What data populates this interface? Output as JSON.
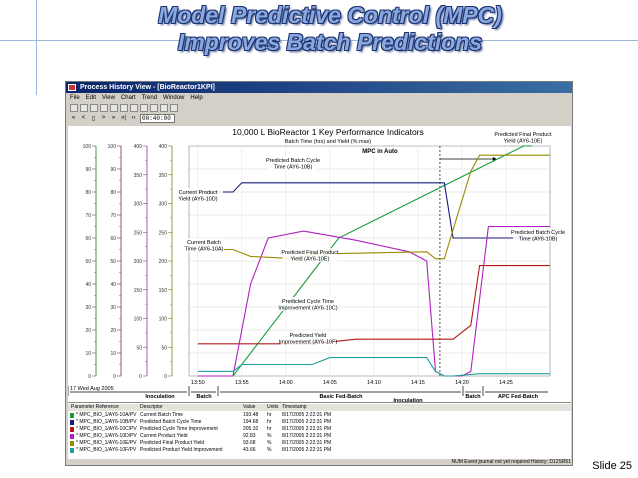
{
  "slide": {
    "title_line1": "Model Predictive Control (MPC)",
    "title_line2": "Improves Batch Predictions",
    "slide_number": "Slide 25"
  },
  "window": {
    "title": "Process History View - [BioReactor1KPI]",
    "menu": [
      "File",
      "Edit",
      "View",
      "Chart",
      "Trend",
      "Window",
      "Help"
    ],
    "nav_glyphs": [
      "«",
      "<",
      "▯",
      ">",
      "»",
      "»|",
      "‹›"
    ],
    "time_span": "00:40:00",
    "status": "NUM  Event journal not yet required  History: D12SR51"
  },
  "chart_data": {
    "type": "line",
    "title": "10,000 L BioReactor 1 Key Performance Indicators",
    "subtitle": "Batch Time (hrs) and Yield (% max)",
    "x_tick_labels": [
      "13:50",
      "13:55",
      "14:00",
      "14:05",
      "14:10",
      "14:15",
      "14:20",
      "14:25"
    ],
    "x_date_label": "17 Wed Aug 2005",
    "y_scales": [
      {
        "ticks": [
          0,
          10,
          20,
          30,
          40,
          50,
          60,
          70,
          80,
          90,
          100
        ]
      },
      {
        "ticks": [
          0,
          10,
          20,
          30,
          40,
          50,
          60,
          70,
          80,
          90,
          100
        ]
      },
      {
        "ticks": [
          0,
          50,
          100,
          150,
          200,
          250,
          300,
          350,
          400
        ]
      },
      {
        "ticks": [
          0,
          50,
          100,
          150,
          200,
          250,
          300,
          350,
          400
        ]
      }
    ],
    "ylim": [
      0,
      100
    ],
    "series": [
      {
        "name": "Current Batch Time",
        "color": "#1c9c3a",
        "x": [
          0,
          4,
          12,
          14,
          16,
          37,
          38
        ],
        "y": [
          0,
          0,
          40,
          50,
          60,
          100,
          100
        ]
      },
      {
        "name": "Predicted Batch Cycle Time",
        "color": "#1a1a7a",
        "x": [
          0,
          4,
          5,
          20,
          28,
          29,
          40
        ],
        "y": [
          80,
          80,
          84,
          84,
          84,
          60,
          60
        ]
      },
      {
        "name": "Predicted Cycle Time Improvement",
        "color": "#b01818",
        "x": [
          0,
          4,
          13,
          18,
          29,
          31,
          32,
          40
        ],
        "y": [
          14,
          14,
          14,
          16,
          16,
          22,
          48,
          48
        ]
      },
      {
        "name": "Current Product Yield",
        "color": "#b020c0",
        "x": [
          0,
          4,
          6,
          8,
          12,
          18,
          24,
          26,
          27,
          28,
          30,
          31,
          33,
          40
        ],
        "y": [
          0,
          0,
          40,
          60,
          63,
          59,
          54,
          50,
          2,
          0,
          0,
          2,
          65,
          65
        ]
      },
      {
        "name": "Predicted Final Product Yield",
        "color": "#9a8a00",
        "x": [
          0,
          4,
          6,
          11,
          13,
          26,
          27,
          28,
          31,
          32,
          40
        ],
        "y": [
          55,
          55,
          52,
          51,
          53,
          54,
          51,
          51,
          89,
          96,
          96
        ]
      },
      {
        "name": "Predicted Product Yield Improvement",
        "color": "#20a0a0",
        "x": [
          0,
          4,
          5,
          13,
          15,
          26,
          27,
          28,
          29,
          32,
          40
        ],
        "y": [
          2,
          2,
          5,
          5,
          8,
          8,
          2,
          0,
          0,
          1,
          1
        ]
      }
    ],
    "annotations": [
      "Predicted Final Product Yield (AY6-10E)",
      "MPC in Auto",
      "Predicted Batch Cycle Time (AY6-10B)",
      "Current Product Yield (AY6-10D)",
      "Predicted Batch Cycle Time (AY6-10B)",
      "Current Batch Time (AY6-10A)",
      "Predicted Final Product Yield (AY6-10E)",
      "Predicted Cycle Time Improvement (AY6-10C)",
      "Predicted Yield Improvement (AY6-10F)"
    ],
    "phases": [
      {
        "label": "Inoculation"
      },
      {
        "label": "Batch"
      },
      {
        "label": "Basic Fed-Batch"
      },
      {
        "label": "Batch"
      },
      {
        "label": "APC Fed-Batch"
      },
      {
        "label": "Inoculation"
      }
    ]
  },
  "table": {
    "headers": [
      "Parameter Reference",
      "Descriptor",
      "Value",
      "Units",
      "Timestamp"
    ],
    "rows": [
      {
        "color": "#1c9c3a",
        "ref": "* MPC_BIO_1/AY6-10A/PV",
        "desc": "Current Batch Time",
        "value": "193.48",
        "units": "hr",
        "time": "8/17/2005 2:22:31 PM"
      },
      {
        "color": "#1a1a7a",
        "ref": "* MPC_BIO_1/AY6-10B/PV",
        "desc": "Predicted Batch Cycle Time",
        "value": "194.68",
        "units": "hr",
        "time": "8/17/2005 2:22:31 PM"
      },
      {
        "color": "#b01818",
        "ref": "* MPC_BIO_1/AY6-10C/PV",
        "desc": "Predicted Cycle Time Improvement",
        "value": "205.32",
        "units": "hr",
        "time": "8/17/2005 2:22:31 PM"
      },
      {
        "color": "#b020c0",
        "ref": "* MPC_BIO_1/AY6-10D/PV",
        "desc": "Current Product Yield",
        "value": "92.83",
        "units": "%",
        "time": "8/17/2005 2:22:31 PM"
      },
      {
        "color": "#9a8a00",
        "ref": "* MPC_BIO_1/AY6-10E/PV",
        "desc": "Predicted Final Product Yield",
        "value": "93.68",
        "units": "%",
        "time": "8/17/2005 2:22:31 PM"
      },
      {
        "color": "#20a0a0",
        "ref": "* MPC_BIO_1/AY6-10F/PV",
        "desc": "Predicted Product Yield Improvement",
        "value": "43.66",
        "units": "%",
        "time": "8/17/2005 2:22:31 PM"
      }
    ]
  }
}
